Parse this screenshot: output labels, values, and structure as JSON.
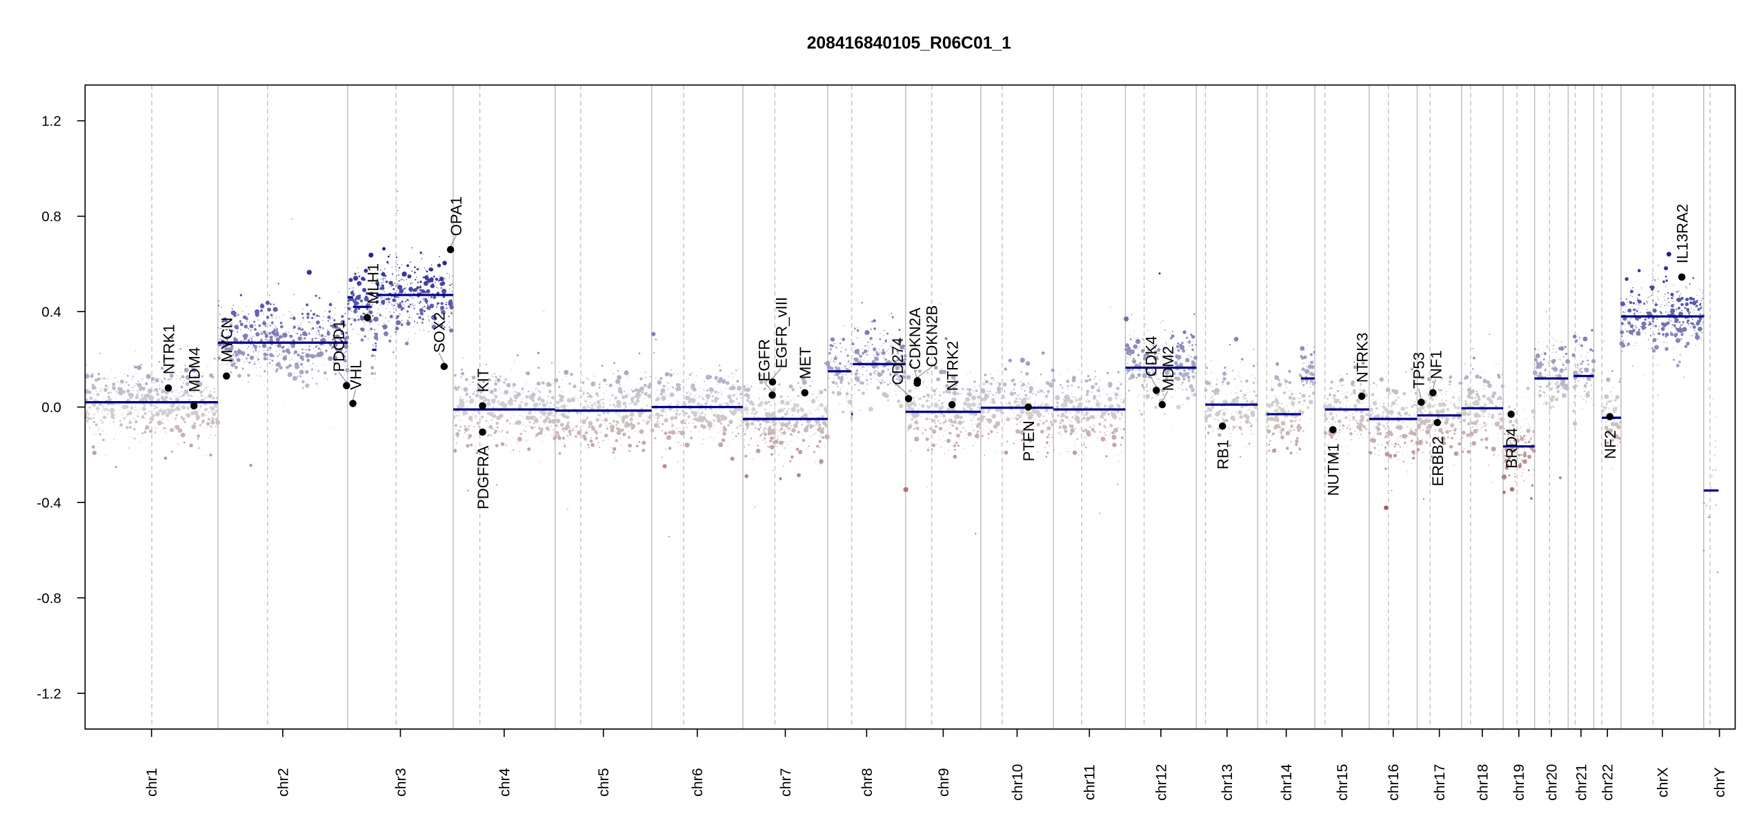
{
  "chart_data": {
    "type": "scatter",
    "title": "208416840105_R06C01_1",
    "xlabel": "",
    "ylabel": "",
    "ylim": [
      -1.35,
      1.35
    ],
    "yticks": [
      1.2,
      0.8,
      0.4,
      0.0,
      -0.4,
      -0.8,
      -1.2
    ],
    "ytick_labels": [
      "1.2",
      "0.8",
      "0.4",
      "0.0",
      "-0.4",
      "-0.8",
      "-1.2"
    ],
    "grid": false,
    "chromosomes": [
      {
        "label": "chr1",
        "length": 249,
        "centromere": 125
      },
      {
        "label": "chr2",
        "length": 243,
        "centromere": 93
      },
      {
        "label": "chr3",
        "length": 198,
        "centromere": 91
      },
      {
        "label": "chr4",
        "length": 191,
        "centromere": 50
      },
      {
        "label": "chr5",
        "length": 181,
        "centromere": 48
      },
      {
        "label": "chr6",
        "length": 171,
        "centromere": 60
      },
      {
        "label": "chr7",
        "length": 159,
        "centromere": 60
      },
      {
        "label": "chr8",
        "length": 146,
        "centromere": 45
      },
      {
        "label": "chr9",
        "length": 141,
        "centromere": 49
      },
      {
        "label": "chr10",
        "length": 136,
        "centromere": 40
      },
      {
        "label": "chr11",
        "length": 135,
        "centromere": 53
      },
      {
        "label": "chr12",
        "length": 133,
        "centromere": 35
      },
      {
        "label": "chr13",
        "length": 115,
        "centromere": 17
      },
      {
        "label": "chr14",
        "length": 107,
        "centromere": 17
      },
      {
        "label": "chr15",
        "length": 102,
        "centromere": 19
      },
      {
        "label": "chr16",
        "length": 90,
        "centromere": 36
      },
      {
        "label": "chr17",
        "length": 83,
        "centromere": 24
      },
      {
        "label": "chr18",
        "length": 78,
        "centromere": 17
      },
      {
        "label": "chr19",
        "length": 59,
        "centromere": 26
      },
      {
        "label": "chr20",
        "length": 63,
        "centromere": 28
      },
      {
        "label": "chr21",
        "length": 48,
        "centromere": 13
      },
      {
        "label": "chr22",
        "length": 51,
        "centromere": 15
      },
      {
        "label": "chrX",
        "length": 155,
        "centromere": 60
      },
      {
        "label": "chrY",
        "length": 59,
        "centromere": 12
      }
    ],
    "segments": [
      {
        "chr": "chr1",
        "start": 0,
        "end": 249,
        "value": 0.02
      },
      {
        "chr": "chr2",
        "start": 0,
        "end": 243,
        "value": 0.27
      },
      {
        "chr": "chr3",
        "start": 0,
        "end": 10,
        "value": 0.46
      },
      {
        "chr": "chr3",
        "start": 10,
        "end": 46,
        "value": 0.42
      },
      {
        "chr": "chr3",
        "start": 46,
        "end": 54,
        "value": 0.24
      },
      {
        "chr": "chr3",
        "start": 54,
        "end": 198,
        "value": 0.47
      },
      {
        "chr": "chr4",
        "start": 0,
        "end": 191,
        "value": -0.01
      },
      {
        "chr": "chr5",
        "start": 0,
        "end": 181,
        "value": -0.015
      },
      {
        "chr": "chr6",
        "start": 0,
        "end": 171,
        "value": 0.0
      },
      {
        "chr": "chr7",
        "start": 0,
        "end": 159,
        "value": -0.05
      },
      {
        "chr": "chr8",
        "start": 0,
        "end": 44,
        "value": 0.15
      },
      {
        "chr": "chr8",
        "start": 44,
        "end": 47,
        "value": -0.03
      },
      {
        "chr": "chr8",
        "start": 47,
        "end": 146,
        "value": 0.18
      },
      {
        "chr": "chr9",
        "start": 0,
        "end": 141,
        "value": -0.02
      },
      {
        "chr": "chr10",
        "start": 0,
        "end": 136,
        "value": -0.003
      },
      {
        "chr": "chr11",
        "start": 0,
        "end": 135,
        "value": -0.01
      },
      {
        "chr": "chr12",
        "start": 0,
        "end": 133,
        "value": 0.165
      },
      {
        "chr": "chr13",
        "start": 17,
        "end": 115,
        "value": 0.01
      },
      {
        "chr": "chr14",
        "start": 17,
        "end": 81,
        "value": -0.03
      },
      {
        "chr": "chr14",
        "start": 81,
        "end": 107,
        "value": 0.12
      },
      {
        "chr": "chr15",
        "start": 19,
        "end": 102,
        "value": -0.01
      },
      {
        "chr": "chr16",
        "start": 0,
        "end": 90,
        "value": -0.05
      },
      {
        "chr": "chr17",
        "start": 0,
        "end": 83,
        "value": -0.035
      },
      {
        "chr": "chr18",
        "start": 0,
        "end": 78,
        "value": -0.005
      },
      {
        "chr": "chr19",
        "start": 0,
        "end": 59,
        "value": -0.165
      },
      {
        "chr": "chr20",
        "start": 0,
        "end": 63,
        "value": 0.12
      },
      {
        "chr": "chr21",
        "start": 10,
        "end": 48,
        "value": 0.13
      },
      {
        "chr": "chr22",
        "start": 15,
        "end": 51,
        "value": -0.045
      },
      {
        "chr": "chrX",
        "start": 0,
        "end": 155,
        "value": 0.38
      },
      {
        "chr": "chrY",
        "start": 0,
        "end": 28,
        "value": -0.35
      }
    ],
    "genes": [
      {
        "name": "NTRK1",
        "chr": "chr1",
        "pos": 156,
        "value": 0.08,
        "label_side": "above"
      },
      {
        "name": "MDM4",
        "chr": "chr1",
        "pos": 204,
        "value": 0.005,
        "label_side": "above"
      },
      {
        "name": "MYCN",
        "chr": "chr2",
        "pos": 16,
        "value": 0.13,
        "label_side": "above"
      },
      {
        "name": "PDCD1",
        "chr": "chr2",
        "pos": 241,
        "value": 0.09,
        "label_side": "above"
      },
      {
        "name": "VHL",
        "chr": "chr3",
        "pos": 10,
        "value": 0.015,
        "label_side": "above"
      },
      {
        "name": "MLH1",
        "chr": "chr3",
        "pos": 37,
        "value": 0.375,
        "label_side": "above"
      },
      {
        "name": "SOX2",
        "chr": "chr3",
        "pos": 181,
        "value": 0.17,
        "label_side": "above"
      },
      {
        "name": "OPA1",
        "chr": "chr3",
        "pos": 193,
        "value": 0.66,
        "label_side": "above"
      },
      {
        "name": "KIT",
        "chr": "chr4",
        "pos": 55,
        "value": 0.005,
        "label_side": "above"
      },
      {
        "name": "PDGFRA",
        "chr": "chr4",
        "pos": 55,
        "value": -0.105,
        "label_side": "below"
      },
      {
        "name": "EGFR",
        "chr": "chr7",
        "pos": 55,
        "value": 0.05,
        "label_side": "above"
      },
      {
        "name": "EGFR_vIII",
        "chr": "chr7",
        "pos": 55.5,
        "value": 0.105,
        "label_side": "above"
      },
      {
        "name": "MET",
        "chr": "chr7",
        "pos": 116,
        "value": 0.06,
        "label_side": "above"
      },
      {
        "name": "CD274",
        "chr": "chr9",
        "pos": 5.5,
        "value": 0.035,
        "label_side": "above"
      },
      {
        "name": "CDKN2A",
        "chr": "chr9",
        "pos": 21.9,
        "value": 0.1,
        "label_side": "above"
      },
      {
        "name": "CDKN2B",
        "chr": "chr9",
        "pos": 22.1,
        "value": 0.11,
        "label_side": "above"
      },
      {
        "name": "NTRK2",
        "chr": "chr9",
        "pos": 87,
        "value": 0.01,
        "label_side": "above"
      },
      {
        "name": "PTEN",
        "chr": "chr10",
        "pos": 89,
        "value": 0.0,
        "label_side": "below"
      },
      {
        "name": "CDK4",
        "chr": "chr12",
        "pos": 58,
        "value": 0.07,
        "label_side": "above"
      },
      {
        "name": "MDM2",
        "chr": "chr12",
        "pos": 69,
        "value": 0.01,
        "label_side": "above"
      },
      {
        "name": "RB1",
        "chr": "chr13",
        "pos": 49,
        "value": -0.08,
        "label_side": "below"
      },
      {
        "name": "NUTM1",
        "chr": "chr15",
        "pos": 34,
        "value": -0.095,
        "label_side": "below"
      },
      {
        "name": "NTRK3",
        "chr": "chr15",
        "pos": 88,
        "value": 0.045,
        "label_side": "above"
      },
      {
        "name": "TP53",
        "chr": "chr17",
        "pos": 7.5,
        "value": 0.02,
        "label_side": "above"
      },
      {
        "name": "NF1",
        "chr": "chr17",
        "pos": 29.5,
        "value": 0.06,
        "label_side": "above"
      },
      {
        "name": "ERBB2",
        "chr": "chr17",
        "pos": 37.8,
        "value": -0.065,
        "label_side": "below"
      },
      {
        "name": "BRD4",
        "chr": "chr19",
        "pos": 15,
        "value": -0.03,
        "label_side": "below"
      },
      {
        "name": "NF2",
        "chr": "chr22",
        "pos": 30,
        "value": -0.04,
        "label_side": "below"
      },
      {
        "name": "IL13RA2",
        "chr": "chrX",
        "pos": 114,
        "value": 0.545,
        "label_side": "above"
      }
    ],
    "colors": {
      "gain": "#00008b",
      "neutral": "#d3d3d3",
      "loss": "#8b0000",
      "segment": "#00008b",
      "gene_point": "#000000",
      "chr_boundary": "#bebebe",
      "centromere": "#bebebe"
    }
  }
}
